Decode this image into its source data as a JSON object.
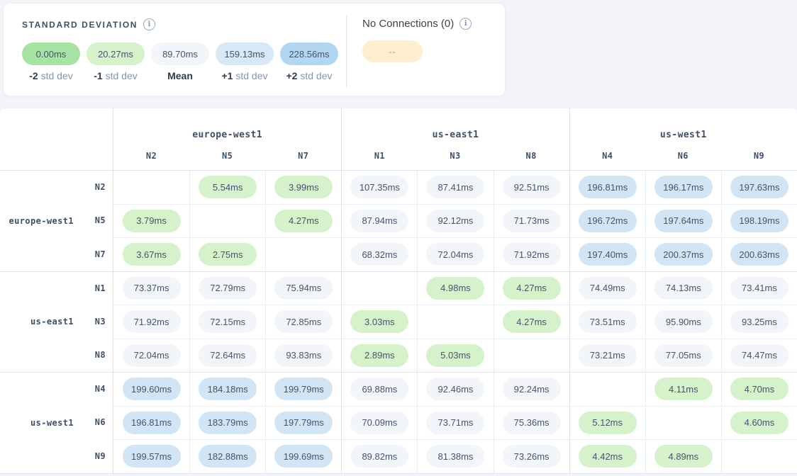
{
  "legend": {
    "std_dev": {
      "title": "STANDARD DEVIATION",
      "info_icon": "i",
      "items": [
        {
          "value": "0.00ms",
          "label_prefix": "-2",
          "label_suffix": "std dev",
          "color": "#a6e4a4"
        },
        {
          "value": "20.27ms",
          "label_prefix": "-1",
          "label_suffix": "std dev",
          "color": "#d5f2cb"
        },
        {
          "value": "89.70ms",
          "label_prefix": "Mean",
          "label_suffix": "",
          "color": "#f2f5fa"
        },
        {
          "value": "159.13ms",
          "label_prefix": "+1",
          "label_suffix": "std dev",
          "color": "#d7e8f7"
        },
        {
          "value": "228.56ms",
          "label_prefix": "+2",
          "label_suffix": "std dev",
          "color": "#b2d7f2"
        }
      ]
    },
    "no_connections": {
      "title": "No Connections (0)",
      "info_icon": "i",
      "pill": "--",
      "color": "#fdeecd"
    }
  },
  "matrix": {
    "groups": [
      {
        "region": "europe-west1",
        "nodes": [
          "N2",
          "N5",
          "N7"
        ]
      },
      {
        "region": "us-east1",
        "nodes": [
          "N1",
          "N3",
          "N8"
        ]
      },
      {
        "region": "us-west1",
        "nodes": [
          "N4",
          "N6",
          "N9"
        ]
      }
    ],
    "cell_colors": {
      "low": "#d5f2cb",
      "mid": "#f2f5f9",
      "high": "#d2e5f5"
    },
    "rows": [
      {
        "node": "N2",
        "cells": [
          null,
          {
            "v": "5.54ms",
            "c": "low"
          },
          {
            "v": "3.99ms",
            "c": "low"
          },
          {
            "v": "107.35ms",
            "c": "mid"
          },
          {
            "v": "87.41ms",
            "c": "mid"
          },
          {
            "v": "92.51ms",
            "c": "mid"
          },
          {
            "v": "196.81ms",
            "c": "high"
          },
          {
            "v": "196.17ms",
            "c": "high"
          },
          {
            "v": "197.63ms",
            "c": "high"
          }
        ]
      },
      {
        "node": "N5",
        "cells": [
          {
            "v": "3.79ms",
            "c": "low"
          },
          null,
          {
            "v": "4.27ms",
            "c": "low"
          },
          {
            "v": "87.94ms",
            "c": "mid"
          },
          {
            "v": "92.12ms",
            "c": "mid"
          },
          {
            "v": "71.73ms",
            "c": "mid"
          },
          {
            "v": "196.72ms",
            "c": "high"
          },
          {
            "v": "197.64ms",
            "c": "high"
          },
          {
            "v": "198.19ms",
            "c": "high"
          }
        ]
      },
      {
        "node": "N7",
        "cells": [
          {
            "v": "3.67ms",
            "c": "low"
          },
          {
            "v": "2.75ms",
            "c": "low"
          },
          null,
          {
            "v": "68.32ms",
            "c": "mid"
          },
          {
            "v": "72.04ms",
            "c": "mid"
          },
          {
            "v": "71.92ms",
            "c": "mid"
          },
          {
            "v": "197.40ms",
            "c": "high"
          },
          {
            "v": "200.37ms",
            "c": "high"
          },
          {
            "v": "200.63ms",
            "c": "high"
          }
        ]
      },
      {
        "node": "N1",
        "cells": [
          {
            "v": "73.37ms",
            "c": "mid"
          },
          {
            "v": "72.79ms",
            "c": "mid"
          },
          {
            "v": "75.94ms",
            "c": "mid"
          },
          null,
          {
            "v": "4.98ms",
            "c": "low"
          },
          {
            "v": "4.27ms",
            "c": "low"
          },
          {
            "v": "74.49ms",
            "c": "mid"
          },
          {
            "v": "74.13ms",
            "c": "mid"
          },
          {
            "v": "73.41ms",
            "c": "mid"
          }
        ]
      },
      {
        "node": "N3",
        "cells": [
          {
            "v": "71.92ms",
            "c": "mid"
          },
          {
            "v": "72.15ms",
            "c": "mid"
          },
          {
            "v": "72.85ms",
            "c": "mid"
          },
          {
            "v": "3.03ms",
            "c": "low"
          },
          null,
          {
            "v": "4.27ms",
            "c": "low"
          },
          {
            "v": "73.51ms",
            "c": "mid"
          },
          {
            "v": "95.90ms",
            "c": "mid"
          },
          {
            "v": "93.25ms",
            "c": "mid"
          }
        ]
      },
      {
        "node": "N8",
        "cells": [
          {
            "v": "72.04ms",
            "c": "mid"
          },
          {
            "v": "72.64ms",
            "c": "mid"
          },
          {
            "v": "93.83ms",
            "c": "mid"
          },
          {
            "v": "2.89ms",
            "c": "low"
          },
          {
            "v": "5.03ms",
            "c": "low"
          },
          null,
          {
            "v": "73.21ms",
            "c": "mid"
          },
          {
            "v": "77.05ms",
            "c": "mid"
          },
          {
            "v": "74.47ms",
            "c": "mid"
          }
        ]
      },
      {
        "node": "N4",
        "cells": [
          {
            "v": "199.60ms",
            "c": "high"
          },
          {
            "v": "184.18ms",
            "c": "high"
          },
          {
            "v": "199.79ms",
            "c": "high"
          },
          {
            "v": "69.88ms",
            "c": "mid"
          },
          {
            "v": "92.46ms",
            "c": "mid"
          },
          {
            "v": "92.24ms",
            "c": "mid"
          },
          null,
          {
            "v": "4.11ms",
            "c": "low"
          },
          {
            "v": "4.70ms",
            "c": "low"
          }
        ]
      },
      {
        "node": "N6",
        "cells": [
          {
            "v": "196.81ms",
            "c": "high"
          },
          {
            "v": "183.79ms",
            "c": "high"
          },
          {
            "v": "197.79ms",
            "c": "high"
          },
          {
            "v": "70.09ms",
            "c": "mid"
          },
          {
            "v": "73.71ms",
            "c": "mid"
          },
          {
            "v": "75.36ms",
            "c": "mid"
          },
          {
            "v": "5.12ms",
            "c": "low"
          },
          null,
          {
            "v": "4.60ms",
            "c": "low"
          }
        ]
      },
      {
        "node": "N9",
        "cells": [
          {
            "v": "199.57ms",
            "c": "high"
          },
          {
            "v": "182.88ms",
            "c": "high"
          },
          {
            "v": "199.69ms",
            "c": "high"
          },
          {
            "v": "89.82ms",
            "c": "mid"
          },
          {
            "v": "81.38ms",
            "c": "mid"
          },
          {
            "v": "73.26ms",
            "c": "mid"
          },
          {
            "v": "4.42ms",
            "c": "low"
          },
          {
            "v": "4.89ms",
            "c": "low"
          },
          null
        ]
      }
    ]
  }
}
